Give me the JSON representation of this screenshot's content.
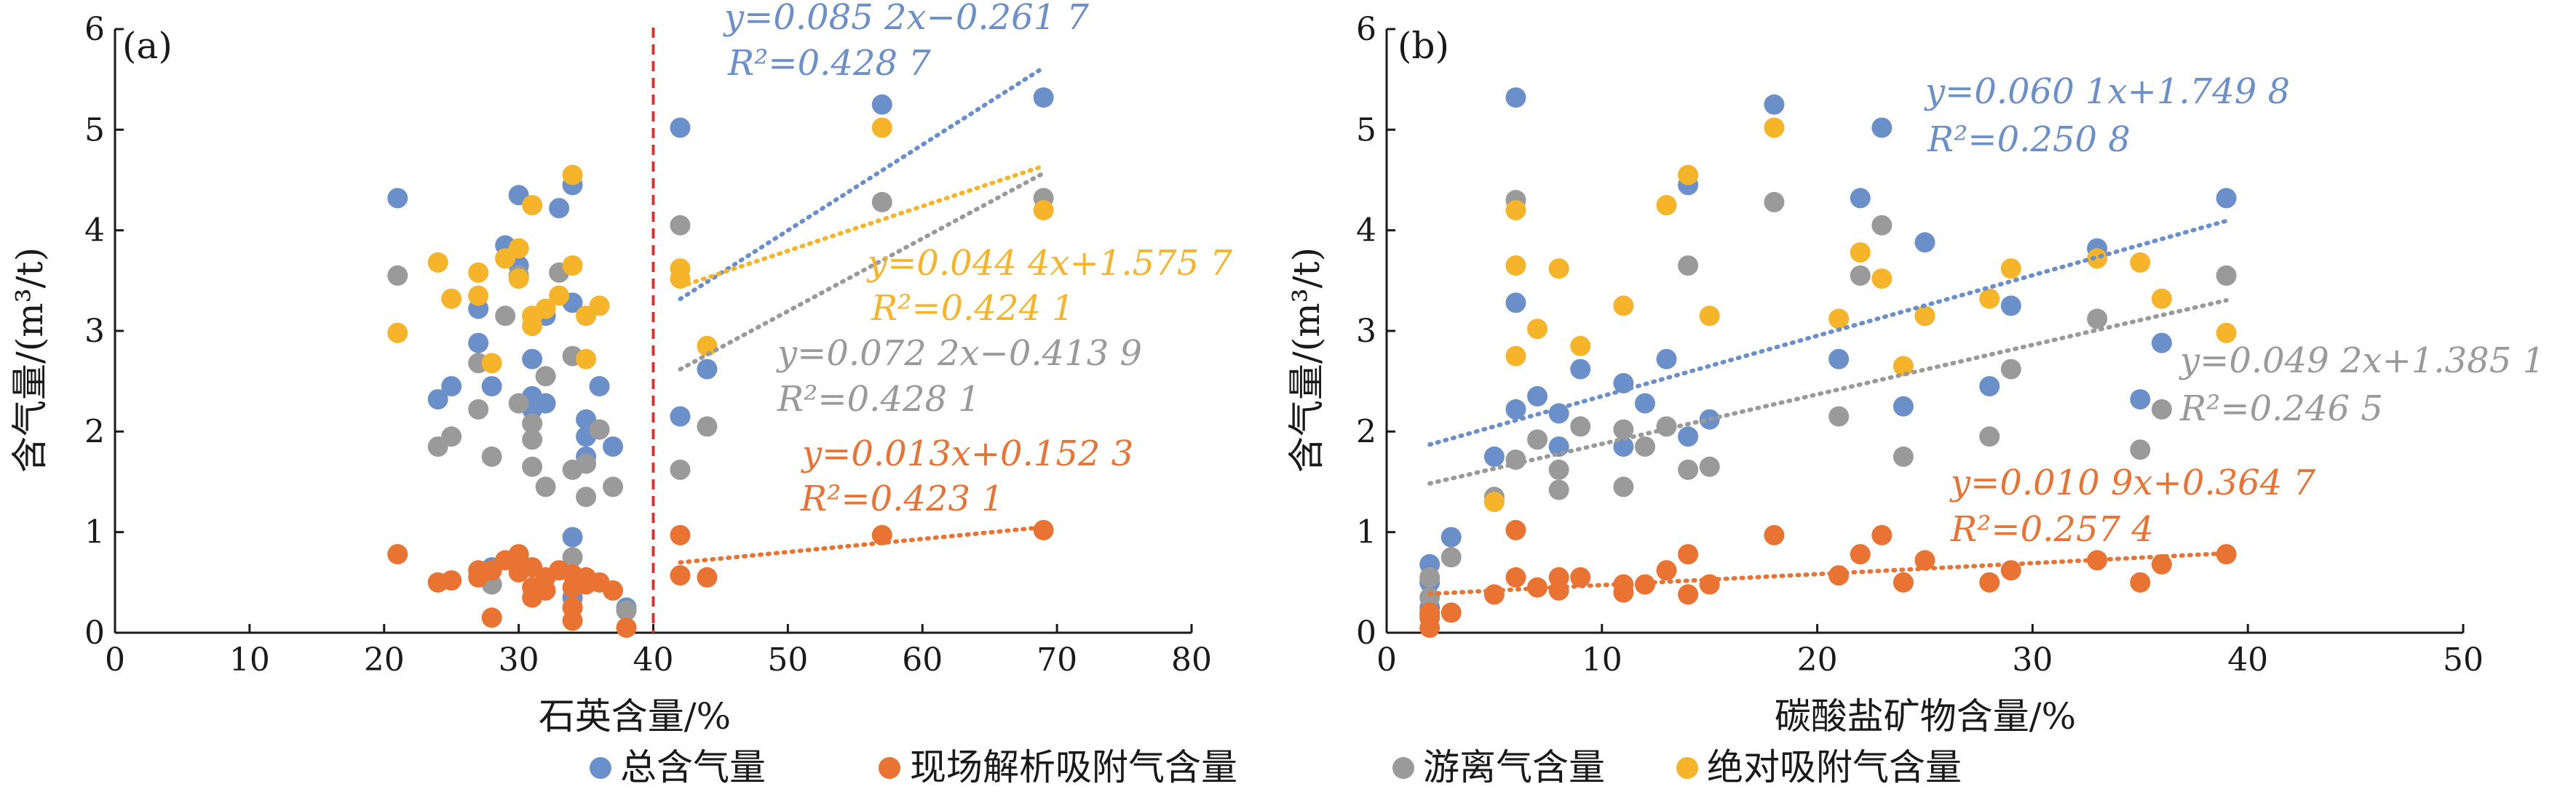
{
  "colors": {
    "total": "#6b8fc9",
    "desorbed": "#e97332",
    "free": "#9a9a9a",
    "absolute": "#f5b42a",
    "divider": "#e0302c",
    "axis": "#1a1a1a"
  },
  "legend": [
    {
      "key": "total",
      "label": "总含气量"
    },
    {
      "key": "desorbed",
      "label": "现场解析吸附气含量"
    },
    {
      "key": "free",
      "label": "游离气含量"
    },
    {
      "key": "absolute",
      "label": "绝对吸附气含量"
    }
  ],
  "chart_data": [
    {
      "id": "a",
      "type": "scatter",
      "panel_label": "(a)",
      "xlabel": "石英含量/%",
      "ylabel": "含气量/(m³/t)",
      "xlim": [
        0,
        80
      ],
      "ylim": [
        0,
        6
      ],
      "xticks": [
        "0",
        "10",
        "20",
        "30",
        "40",
        "50",
        "60",
        "70",
        "80"
      ],
      "yticks": [
        "0",
        "1",
        "2",
        "3",
        "4",
        "5",
        "6"
      ],
      "divider_x": 40,
      "series": [
        {
          "key": "total",
          "name": "总含气量",
          "points": [
            [
              21,
              4.32
            ],
            [
              24,
              2.32
            ],
            [
              25,
              2.45
            ],
            [
              27,
              3.22
            ],
            [
              27,
              2.88
            ],
            [
              28,
              2.45
            ],
            [
              28,
              0.65
            ],
            [
              29,
              3.85
            ],
            [
              30,
              4.35
            ],
            [
              30,
              3.65
            ],
            [
              31,
              2.72
            ],
            [
              31,
              2.35
            ],
            [
              31,
              2.22
            ],
            [
              32,
              3.15
            ],
            [
              32,
              2.28
            ],
            [
              33,
              4.22
            ],
            [
              34,
              4.45
            ],
            [
              34,
              3.28
            ],
            [
              34,
              0.95
            ],
            [
              34,
              0.35
            ],
            [
              35,
              2.12
            ],
            [
              35,
              1.95
            ],
            [
              35,
              1.75
            ],
            [
              36,
              2.45
            ],
            [
              37,
              1.85
            ],
            [
              38,
              0.25
            ],
            [
              42,
              5.02
            ],
            [
              42,
              2.15
            ],
            [
              44,
              2.62
            ],
            [
              57,
              5.25
            ],
            [
              69,
              5.32
            ]
          ]
        },
        {
          "key": "desorbed",
          "name": "现场解析吸附气含量",
          "points": [
            [
              21,
              0.78
            ],
            [
              24,
              0.5
            ],
            [
              25,
              0.52
            ],
            [
              27,
              0.62
            ],
            [
              27,
              0.55
            ],
            [
              28,
              0.15
            ],
            [
              28,
              0.62
            ],
            [
              29,
              0.72
            ],
            [
              30,
              0.78
            ],
            [
              30,
              0.6
            ],
            [
              31,
              0.65
            ],
            [
              31,
              0.45
            ],
            [
              31,
              0.35
            ],
            [
              32,
              0.55
            ],
            [
              32,
              0.42
            ],
            [
              33,
              0.62
            ],
            [
              34,
              0.58
            ],
            [
              34,
              0.45
            ],
            [
              34,
              0.25
            ],
            [
              34,
              0.12
            ],
            [
              35,
              0.55
            ],
            [
              35,
              0.48
            ],
            [
              36,
              0.5
            ],
            [
              37,
              0.42
            ],
            [
              38,
              0.05
            ],
            [
              42,
              0.97
            ],
            [
              42,
              0.57
            ],
            [
              44,
              0.55
            ],
            [
              57,
              0.97
            ],
            [
              69,
              1.02
            ]
          ]
        },
        {
          "key": "free",
          "name": "游离气含量",
          "points": [
            [
              21,
              3.55
            ],
            [
              24,
              1.85
            ],
            [
              25,
              1.95
            ],
            [
              27,
              2.68
            ],
            [
              27,
              2.22
            ],
            [
              28,
              1.75
            ],
            [
              28,
              0.48
            ],
            [
              29,
              3.15
            ],
            [
              30,
              3.55
            ],
            [
              30,
              2.28
            ],
            [
              31,
              2.08
            ],
            [
              31,
              1.92
            ],
            [
              31,
              1.65
            ],
            [
              32,
              2.55
            ],
            [
              32,
              1.45
            ],
            [
              33,
              3.58
            ],
            [
              34,
              2.75
            ],
            [
              34,
              1.62
            ],
            [
              34,
              0.75
            ],
            [
              34,
              0.25
            ],
            [
              35,
              1.68
            ],
            [
              35,
              1.35
            ],
            [
              36,
              2.02
            ],
            [
              37,
              1.45
            ],
            [
              38,
              0.22
            ],
            [
              42,
              4.05
            ],
            [
              42,
              1.62
            ],
            [
              44,
              2.05
            ],
            [
              57,
              4.28
            ],
            [
              69,
              4.32
            ]
          ]
        },
        {
          "key": "absolute",
          "name": "绝对吸附气含量",
          "points": [
            [
              21,
              2.98
            ],
            [
              24,
              3.68
            ],
            [
              25,
              3.32
            ],
            [
              27,
              3.35
            ],
            [
              27,
              3.58
            ],
            [
              28,
              2.68
            ],
            [
              29,
              3.72
            ],
            [
              30,
              3.82
            ],
            [
              30,
              3.52
            ],
            [
              31,
              4.25
            ],
            [
              31,
              3.05
            ],
            [
              31,
              3.15
            ],
            [
              32,
              3.22
            ],
            [
              33,
              3.35
            ],
            [
              34,
              4.55
            ],
            [
              34,
              3.65
            ],
            [
              35,
              3.15
            ],
            [
              35,
              2.72
            ],
            [
              36,
              3.25
            ],
            [
              42,
              3.62
            ],
            [
              42,
              3.52
            ],
            [
              44,
              2.85
            ],
            [
              57,
              5.02
            ],
            [
              69,
              4.2
            ]
          ]
        }
      ],
      "trendlines": [
        {
          "key": "total",
          "x_range": [
            42,
            69
          ],
          "slope": 0.0852,
          "intercept": -0.2617,
          "equation": "y=0.085 2x−0.261 7",
          "r2": "R²=0.428 7"
        },
        {
          "key": "absolute",
          "x_range": [
            42,
            69
          ],
          "slope": 0.0444,
          "intercept": 1.5757,
          "equation": "y=0.044 4x+1.575 7",
          "r2": "R²=0.424 1"
        },
        {
          "key": "free",
          "x_range": [
            42,
            69
          ],
          "slope": 0.0722,
          "intercept": -0.4139,
          "equation": "y=0.072 2x−0.413 9",
          "r2": "R²=0.428 1"
        },
        {
          "key": "desorbed",
          "x_range": [
            42,
            69
          ],
          "slope": 0.013,
          "intercept": 0.1523,
          "equation": "y=0.013x+0.152 3",
          "r2": "R²=0.423 1"
        }
      ]
    },
    {
      "id": "b",
      "type": "scatter",
      "panel_label": "(b)",
      "xlabel": "碳酸盐矿物含量/%",
      "ylabel": "含气量/(m³/t)",
      "xlim": [
        0,
        50
      ],
      "ylim": [
        0,
        6
      ],
      "xticks": [
        "0",
        "10",
        "20",
        "30",
        "40",
        "50"
      ],
      "yticks": [
        "0",
        "1",
        "2",
        "3",
        "4",
        "5",
        "6"
      ],
      "series": [
        {
          "key": "total",
          "name": "总含气量",
          "points": [
            [
              2,
              0.68
            ],
            [
              2,
              0.5
            ],
            [
              2,
              0.25
            ],
            [
              3,
              0.95
            ],
            [
              5,
              1.75
            ],
            [
              6,
              5.32
            ],
            [
              6,
              3.28
            ],
            [
              6,
              2.22
            ],
            [
              7,
              2.35
            ],
            [
              8,
              2.18
            ],
            [
              8,
              1.85
            ],
            [
              9,
              2.62
            ],
            [
              11,
              2.48
            ],
            [
              11,
              1.85
            ],
            [
              12,
              2.28
            ],
            [
              13,
              2.72
            ],
            [
              14,
              4.45
            ],
            [
              14,
              1.95
            ],
            [
              15,
              2.12
            ],
            [
              18,
              5.25
            ],
            [
              21,
              2.72
            ],
            [
              22,
              4.32
            ],
            [
              23,
              5.02
            ],
            [
              24,
              2.25
            ],
            [
              25,
              3.88
            ],
            [
              28,
              2.45
            ],
            [
              29,
              3.25
            ],
            [
              33,
              3.82
            ],
            [
              35,
              2.32
            ],
            [
              36,
              2.88
            ],
            [
              39,
              4.32
            ]
          ]
        },
        {
          "key": "desorbed",
          "name": "现场解析吸附气含量",
          "points": [
            [
              2,
              0.2
            ],
            [
              2,
              0.15
            ],
            [
              2,
              0.05
            ],
            [
              3,
              0.2
            ],
            [
              5,
              0.38
            ],
            [
              6,
              1.02
            ],
            [
              6,
              0.55
            ],
            [
              7,
              0.45
            ],
            [
              8,
              0.55
            ],
            [
              8,
              0.42
            ],
            [
              9,
              0.55
            ],
            [
              11,
              0.48
            ],
            [
              11,
              0.4
            ],
            [
              12,
              0.48
            ],
            [
              13,
              0.62
            ],
            [
              14,
              0.78
            ],
            [
              14,
              0.38
            ],
            [
              15,
              0.48
            ],
            [
              18,
              0.97
            ],
            [
              21,
              0.57
            ],
            [
              22,
              0.78
            ],
            [
              23,
              0.97
            ],
            [
              24,
              0.5
            ],
            [
              25,
              0.72
            ],
            [
              28,
              0.5
            ],
            [
              29,
              0.62
            ],
            [
              33,
              0.72
            ],
            [
              35,
              0.5
            ],
            [
              36,
              0.68
            ],
            [
              39,
              0.78
            ]
          ]
        },
        {
          "key": "free",
          "name": "游离气含量",
          "points": [
            [
              2,
              0.55
            ],
            [
              2,
              0.35
            ],
            [
              2,
              0.18
            ],
            [
              3,
              0.75
            ],
            [
              5,
              1.35
            ],
            [
              6,
              4.3
            ],
            [
              6,
              1.72
            ],
            [
              7,
              1.92
            ],
            [
              8,
              1.62
            ],
            [
              8,
              1.42
            ],
            [
              9,
              2.05
            ],
            [
              11,
              2.02
            ],
            [
              11,
              1.45
            ],
            [
              12,
              1.85
            ],
            [
              13,
              2.05
            ],
            [
              14,
              3.65
            ],
            [
              14,
              1.62
            ],
            [
              15,
              1.65
            ],
            [
              18,
              4.28
            ],
            [
              21,
              2.15
            ],
            [
              22,
              3.55
            ],
            [
              23,
              4.05
            ],
            [
              24,
              1.75
            ],
            [
              25,
              3.15
            ],
            [
              28,
              1.95
            ],
            [
              29,
              2.62
            ],
            [
              33,
              3.12
            ],
            [
              35,
              1.82
            ],
            [
              36,
              2.22
            ],
            [
              39,
              3.55
            ]
          ]
        },
        {
          "key": "absolute",
          "name": "绝对吸附气含量",
          "points": [
            [
              5,
              1.3
            ],
            [
              6,
              4.2
            ],
            [
              6,
              3.65
            ],
            [
              6,
              2.75
            ],
            [
              7,
              3.02
            ],
            [
              8,
              3.62
            ],
            [
              9,
              2.85
            ],
            [
              11,
              3.25
            ],
            [
              13,
              4.25
            ],
            [
              14,
              4.55
            ],
            [
              15,
              3.15
            ],
            [
              18,
              5.02
            ],
            [
              21,
              3.12
            ],
            [
              22,
              3.78
            ],
            [
              23,
              3.52
            ],
            [
              24,
              2.65
            ],
            [
              25,
              3.15
            ],
            [
              28,
              3.32
            ],
            [
              29,
              3.62
            ],
            [
              33,
              3.72
            ],
            [
              35,
              3.68
            ],
            [
              36,
              3.32
            ],
            [
              39,
              2.98
            ]
          ]
        }
      ],
      "trendlines": [
        {
          "key": "total",
          "x_range": [
            2,
            39
          ],
          "slope": 0.0601,
          "intercept": 1.7498,
          "equation": "y=0.060 1x+1.749 8",
          "r2": "R²=0.250 8"
        },
        {
          "key": "free",
          "x_range": [
            2,
            39
          ],
          "slope": 0.0492,
          "intercept": 1.3851,
          "equation": "y=0.049 2x+1.385 1",
          "r2": "R²=0.246 5"
        },
        {
          "key": "desorbed",
          "x_range": [
            2,
            39
          ],
          "slope": 0.0109,
          "intercept": 0.3647,
          "equation": "y=0.010 9x+0.364 7",
          "r2": "R²=0.257 4"
        }
      ]
    }
  ]
}
